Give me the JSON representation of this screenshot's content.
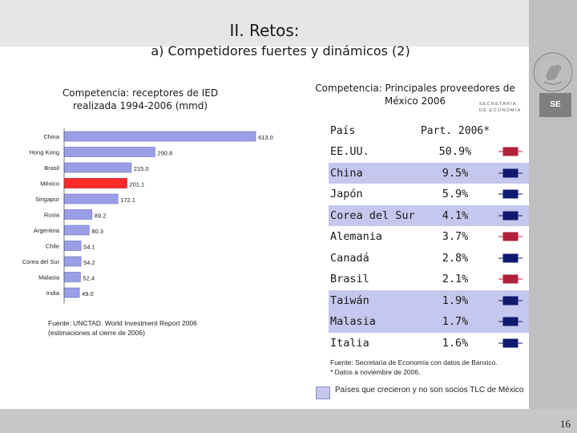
{
  "slide": {
    "title": "II. Retos:",
    "subtitle": "a) Competidores fuertes y dinámicos (2)",
    "page_number": "16",
    "logo_text": "SE",
    "secretaria_line1": "SECRETARÍA",
    "secretaria_line2": "DE ECONOMÍA"
  },
  "left_panel": {
    "heading_line1": "Competencia: receptores de IED",
    "heading_line2": "realizada 1994-2006 (mmd)",
    "source_line1": "Fuente: UNCTAD. World Investment Report 2006",
    "source_line2": "(estimaciones al cierre de 2006)"
  },
  "chart_data": {
    "type": "bar",
    "orientation": "horizontal",
    "title": "Competencia: receptores de IED realizada 1994-2006 (mmd)",
    "categories": [
      "China",
      "Hong Kong",
      "Brasil",
      "México",
      "Singapur",
      "Rusia",
      "Argentina",
      "Chile",
      "Corea del Sur",
      "Malasia",
      "India"
    ],
    "values": [
      613.0,
      290.8,
      215.0,
      201.1,
      172.1,
      89.2,
      80.3,
      54.1,
      54.2,
      52.4,
      49.0
    ],
    "value_labels": [
      "613.0",
      "290.8",
      "215.0",
      "201.1",
      "172.1",
      "89.2",
      "80.3",
      "54.1",
      "54.2",
      "52.4",
      "49.0"
    ],
    "highlight": "México",
    "colors": {
      "default": "#9a9ee6",
      "highlight": "#ff2a2a"
    }
  },
  "right_panel": {
    "heading_line1": "Competencia: Principales proveedores de",
    "heading_line2": "México 2006",
    "col_country": "País",
    "col_share": "Part. 2006*",
    "rows": [
      {
        "country": "EE.UU.",
        "share": "50.9%",
        "highlight": false,
        "flag": "red"
      },
      {
        "country": "China",
        "share": "9.5%",
        "highlight": true,
        "flag": "navy"
      },
      {
        "country": "Japón",
        "share": "5.9%",
        "highlight": false,
        "flag": "navy"
      },
      {
        "country": "Corea del Sur",
        "share": "4.1%",
        "highlight": true,
        "flag": "navy"
      },
      {
        "country": "Alemania",
        "share": "3.7%",
        "highlight": false,
        "flag": "red"
      },
      {
        "country": "Canadá",
        "share": "2.8%",
        "highlight": false,
        "flag": "navy"
      },
      {
        "country": "Brasil",
        "share": "2.1%",
        "highlight": false,
        "flag": "red"
      },
      {
        "country": "Taiwán",
        "share": "1.9%",
        "highlight": true,
        "flag": "navy"
      },
      {
        "country": "Malasia",
        "share": "1.7%",
        "highlight": true,
        "flag": "navy"
      },
      {
        "country": "Italia",
        "share": "1.6%",
        "highlight": false,
        "flag": "navy"
      }
    ],
    "source_line1": "Fuente: Secretaría de Economía con datos de Banxico.",
    "source_line2": "* Datos a noviembre de 2006.",
    "legend_text": "Países que crecieron y no son socios TLC de México",
    "flag_colors": {
      "red": "#b0213b",
      "navy": "#101a6e"
    },
    "highlight_color": "#c5c7ee"
  }
}
